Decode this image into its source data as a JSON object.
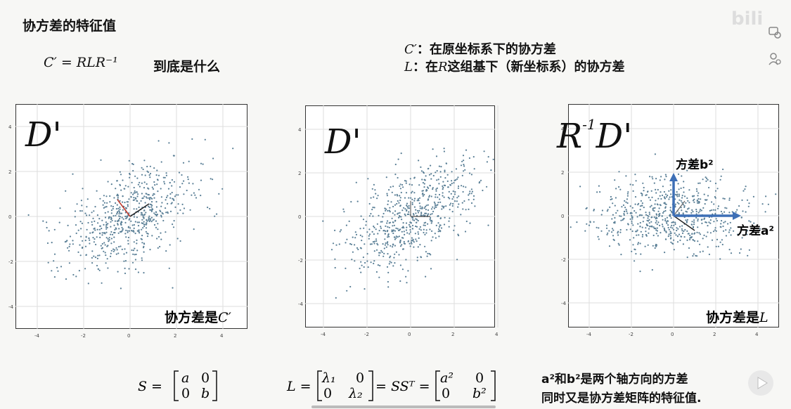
{
  "header": {
    "title": "协方差的特征值",
    "formula": "C′ = RLR⁻¹",
    "question": "到底是什么"
  },
  "definitions": {
    "c_prime_symbol": "C′",
    "c_prime_text": "：在原坐标系下的协方差",
    "l_symbol": "L",
    "l_text_prefix": "：在",
    "l_text_r": "R",
    "l_text_suffix": "这组基下（新坐标系）的协方差"
  },
  "plots": [
    {
      "big_label": "D'",
      "cov_text": "协方差是",
      "cov_symbol": "C′",
      "x_ticks": [
        "-4",
        "-2",
        "0",
        "2",
        "4"
      ],
      "y_ticks": [
        "4",
        "2",
        "0",
        "-2",
        "-4"
      ]
    },
    {
      "big_label": "D'",
      "x_ticks": [
        "-4",
        "-2",
        "0",
        "2",
        "4"
      ],
      "y_ticks": [
        "4",
        "2",
        "0",
        "-2",
        "-4"
      ]
    },
    {
      "big_label_r": "R",
      "big_label_sup": "-1",
      "big_label_d": "D'",
      "cov_text": "协方差是",
      "cov_symbol": "L",
      "axis_b_label": "方差b²",
      "axis_a_label": "方差a²",
      "x_ticks": [
        "-4",
        "-2",
        "0",
        "2",
        "4"
      ],
      "y_ticks": [
        "4",
        "2",
        "0",
        "-2",
        "-4"
      ]
    }
  ],
  "equations": {
    "s_eq": "S =",
    "s_matrix": [
      [
        "a",
        "0"
      ],
      [
        "0",
        "b"
      ]
    ],
    "l_eq": "L =",
    "l_matrix": [
      [
        "λ₁",
        "0"
      ],
      [
        "0",
        "λ₂"
      ]
    ],
    "l_mid": "= SSᵀ =",
    "l_matrix2": [
      [
        "a²",
        "0"
      ],
      [
        "0",
        "b²"
      ]
    ]
  },
  "notes": {
    "line1": "a²和b²是两个轴方向的方差",
    "line2": "同时又是协方差矩阵的特征值."
  },
  "colors": {
    "dots": "#5a7f96",
    "blue_axis": "#3d6fb6",
    "red_vector": "#c0392b"
  },
  "icons": [
    "bilibili-logo",
    "danmaku-settings-icon",
    "user-icon",
    "play-icon"
  ]
}
